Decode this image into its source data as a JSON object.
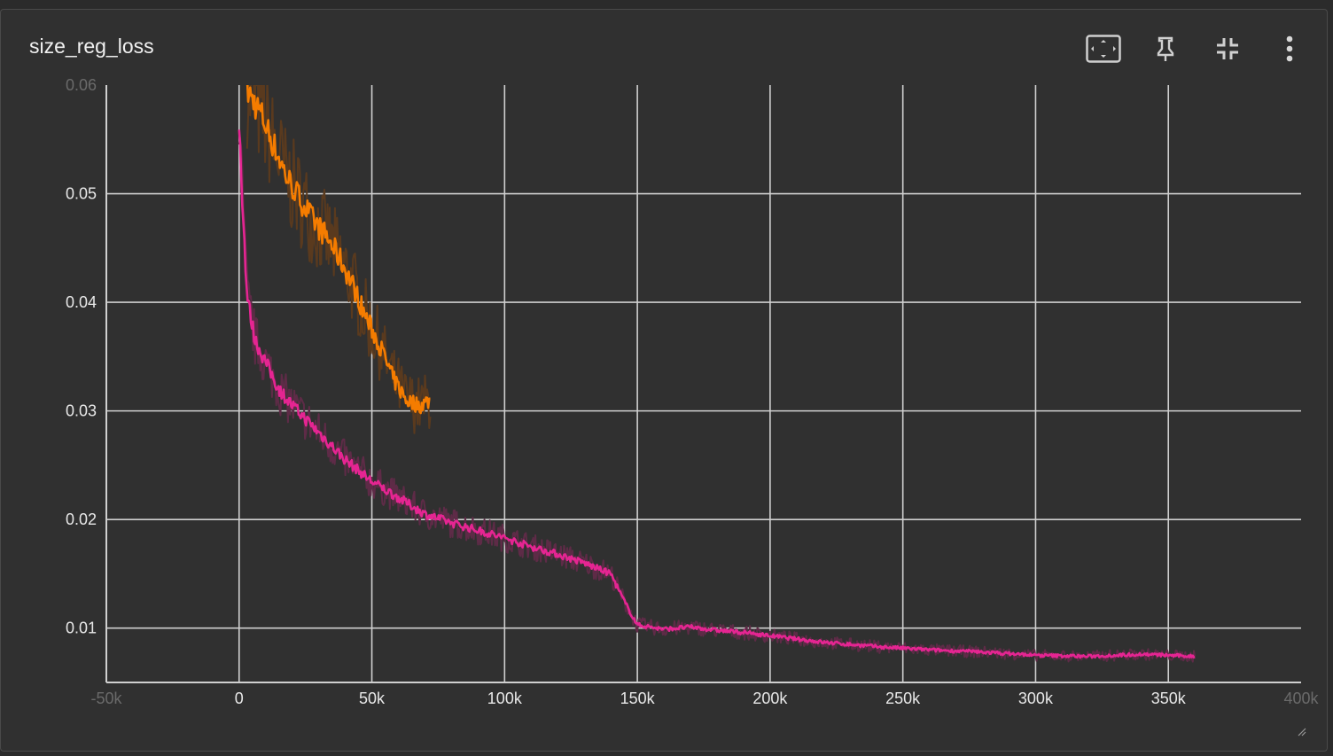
{
  "card": {
    "title": "size_reg_loss"
  },
  "toolbar": {
    "fit_icon": "fit-to-domain-icon",
    "pin_icon": "pin-icon",
    "collapse_icon": "collapse-icon",
    "more_icon": "more-vert-icon"
  },
  "chart_data": {
    "type": "line",
    "title": "size_reg_loss",
    "xlabel": "",
    "ylabel": "",
    "xlim": [
      -50000,
      400000
    ],
    "ylim": [
      0.005,
      0.06
    ],
    "x_ticks": [
      "-50k",
      "0",
      "50k",
      "100k",
      "150k",
      "200k",
      "250k",
      "300k",
      "350k",
      "400k"
    ],
    "x_tick_values": [
      -50000,
      0,
      50000,
      100000,
      150000,
      200000,
      250000,
      300000,
      350000,
      400000
    ],
    "y_ticks": [
      "0.01",
      "0.02",
      "0.03",
      "0.04",
      "0.05",
      "0.06"
    ],
    "y_tick_values": [
      0.01,
      0.02,
      0.03,
      0.04,
      0.05,
      0.06
    ],
    "grid": true,
    "series": [
      {
        "color": "#f57c00",
        "raw_color": "#5a3a1e",
        "x": [
          3000,
          8000,
          13000,
          18000,
          23000,
          28000,
          33000,
          38000,
          43000,
          48000,
          53000,
          58000,
          63000,
          68000,
          72000
        ],
        "y": [
          0.0595,
          0.0575,
          0.0545,
          0.0515,
          0.0495,
          0.0475,
          0.046,
          0.044,
          0.0415,
          0.0385,
          0.036,
          0.033,
          0.031,
          0.0305,
          0.031
        ]
      },
      {
        "color": "#e52592",
        "raw_color": "#5e2b47",
        "x": [
          0,
          1500,
          3000,
          6000,
          10000,
          15000,
          20000,
          30000,
          40000,
          50000,
          60000,
          70000,
          80000,
          90000,
          100000,
          110000,
          120000,
          130000,
          140000,
          145000,
          150000,
          160000,
          170000,
          180000,
          190000,
          200000,
          220000,
          240000,
          260000,
          280000,
          300000,
          320000,
          340000,
          360000
        ],
        "y": [
          0.0565,
          0.048,
          0.0405,
          0.0365,
          0.0345,
          0.032,
          0.0305,
          0.028,
          0.0255,
          0.0235,
          0.022,
          0.0205,
          0.0197,
          0.019,
          0.0183,
          0.0175,
          0.0168,
          0.016,
          0.015,
          0.0125,
          0.0103,
          0.0099,
          0.0101,
          0.0098,
          0.0096,
          0.0093,
          0.0087,
          0.0083,
          0.008,
          0.0078,
          0.0075,
          0.0074,
          0.0076,
          0.0074
        ]
      }
    ]
  }
}
